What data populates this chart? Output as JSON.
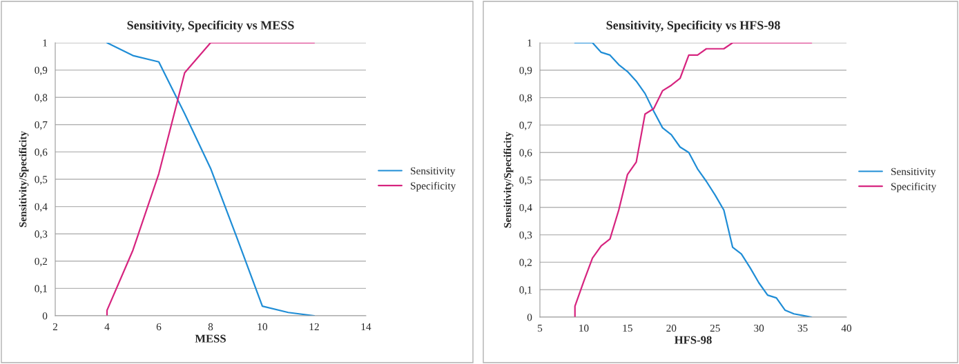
{
  "chart_data": [
    {
      "type": "line",
      "title": "Sensitivity, Specificity vs MESS",
      "xlabel": "MESS",
      "ylabel": "Sensitivity/Specificity",
      "xlim": [
        2,
        14
      ],
      "xticks": [
        2,
        4,
        6,
        8,
        10,
        12,
        14
      ],
      "ylim": [
        0,
        1
      ],
      "yticks": [
        0,
        {
          "value": 0.1,
          "label": "0,1"
        },
        {
          "value": 0.2,
          "label": "0,2"
        },
        {
          "value": 0.3,
          "label": "0,3"
        },
        {
          "value": 0.4,
          "label": "0,4"
        },
        {
          "value": 0.5,
          "label": "0,5"
        },
        {
          "value": 0.6,
          "label": "0,6"
        },
        {
          "value": 0.7,
          "label": "0,7"
        },
        {
          "value": 0.8,
          "label": "0,8"
        },
        {
          "value": 0.9,
          "label": "0,9"
        },
        1
      ],
      "grid": "y",
      "legend": "right",
      "marker": "none",
      "line_style": "solid",
      "series": [
        {
          "name": "Sensitivity",
          "color": "#1f8dd6",
          "x": [
            4,
            5,
            6,
            7,
            8,
            9,
            10,
            11,
            12
          ],
          "values": [
            1,
            0.953,
            0.93,
            0.74,
            0.54,
            0.29,
            0.035,
            0.012,
            0
          ]
        },
        {
          "name": "Specificity",
          "color": "#d6247f",
          "x": [
            4,
            4,
            5,
            6,
            7,
            8,
            9,
            10,
            11,
            12
          ],
          "values": [
            0,
            0.02,
            0.24,
            0.52,
            0.89,
            1,
            1,
            1,
            1,
            1
          ]
        }
      ]
    },
    {
      "type": "line",
      "title": "Sensitivity, Specificity vs HFS-98",
      "xlabel": "HFS-98",
      "ylabel": "Sensitivity/Specificity",
      "xlim": [
        5,
        40
      ],
      "xticks": [
        5,
        10,
        15,
        20,
        25,
        30,
        35,
        40
      ],
      "ylim": [
        0,
        1
      ],
      "yticks": [
        0,
        {
          "value": 0.1,
          "label": "0,1"
        },
        {
          "value": 0.2,
          "label": "0,2"
        },
        {
          "value": 0.3,
          "label": "0,3"
        },
        {
          "value": 0.4,
          "label": "0,4"
        },
        {
          "value": 0.5,
          "label": "0,5"
        },
        {
          "value": 0.6,
          "label": "0,6"
        },
        {
          "value": 0.7,
          "label": "0,7"
        },
        {
          "value": 0.8,
          "label": "0,8"
        },
        {
          "value": 0.9,
          "label": "0,9"
        },
        1
      ],
      "grid": "y",
      "legend": "right",
      "marker": "none",
      "line_style": "solid",
      "series": [
        {
          "name": "Sensitivity",
          "color": "#1f8dd6",
          "x": [
            9,
            10,
            11,
            12,
            13,
            14,
            15,
            16,
            17,
            18,
            19,
            20,
            21,
            22,
            23,
            24,
            25,
            26,
            27,
            28,
            29,
            30,
            31,
            32,
            33,
            34,
            35,
            36
          ],
          "values": [
            1,
            1,
            1,
            0.965,
            0.955,
            0.92,
            0.895,
            0.86,
            0.815,
            0.75,
            0.69,
            0.665,
            0.62,
            0.6,
            0.54,
            0.495,
            0.445,
            0.39,
            0.255,
            0.23,
            0.18,
            0.125,
            0.08,
            0.07,
            0.025,
            0.012,
            0.006,
            0
          ]
        },
        {
          "name": "Specificity",
          "color": "#d6247f",
          "x": [
            9,
            9,
            10,
            11,
            12,
            13,
            14,
            15,
            16,
            17,
            18,
            19,
            20,
            21,
            22,
            23,
            24,
            25,
            26,
            27,
            28,
            29,
            30,
            31,
            32,
            33,
            34,
            35,
            36
          ],
          "values": [
            0,
            0.04,
            0.13,
            0.215,
            0.26,
            0.285,
            0.39,
            0.52,
            0.565,
            0.74,
            0.76,
            0.825,
            0.845,
            0.87,
            0.955,
            0.955,
            0.978,
            0.978,
            0.978,
            1,
            1,
            1,
            1,
            1,
            1,
            1,
            1,
            1,
            1
          ]
        }
      ]
    }
  ]
}
